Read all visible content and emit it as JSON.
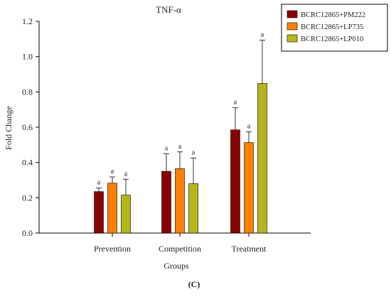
{
  "chart_data": {
    "type": "bar",
    "title": "TNF-α",
    "xlabel": "Groups",
    "ylabel": "Fold Change",
    "panel_label": "(C)",
    "ylim": [
      0,
      1.2
    ],
    "yticks": [
      "0.0",
      "0.2",
      "0.4",
      "0.6",
      "0.8",
      "1.0",
      "1.2"
    ],
    "grid": false,
    "legend_position": "top-right",
    "categories": [
      "Prevention",
      "Competition",
      "Treatment"
    ],
    "series": [
      {
        "name": "BCRC12865+PM222",
        "color": "#8b0000",
        "values": [
          0.235,
          0.35,
          0.585
        ],
        "errors": [
          0.02,
          0.1,
          0.125
        ],
        "labels": [
          "a",
          "a",
          "a"
        ]
      },
      {
        "name": "BCRC12865+LP735",
        "color": "#ff8000",
        "values": [
          0.283,
          0.365,
          0.513
        ],
        "errors": [
          0.035,
          0.095,
          0.06
        ],
        "labels": [
          "a",
          "a",
          "a"
        ]
      },
      {
        "name": "BCRC12865+LP010",
        "color": "#b6b61c",
        "values": [
          0.215,
          0.28,
          0.848
        ],
        "errors": [
          0.09,
          0.145,
          0.245
        ],
        "labels": [
          "a",
          "a",
          "a"
        ]
      }
    ]
  }
}
